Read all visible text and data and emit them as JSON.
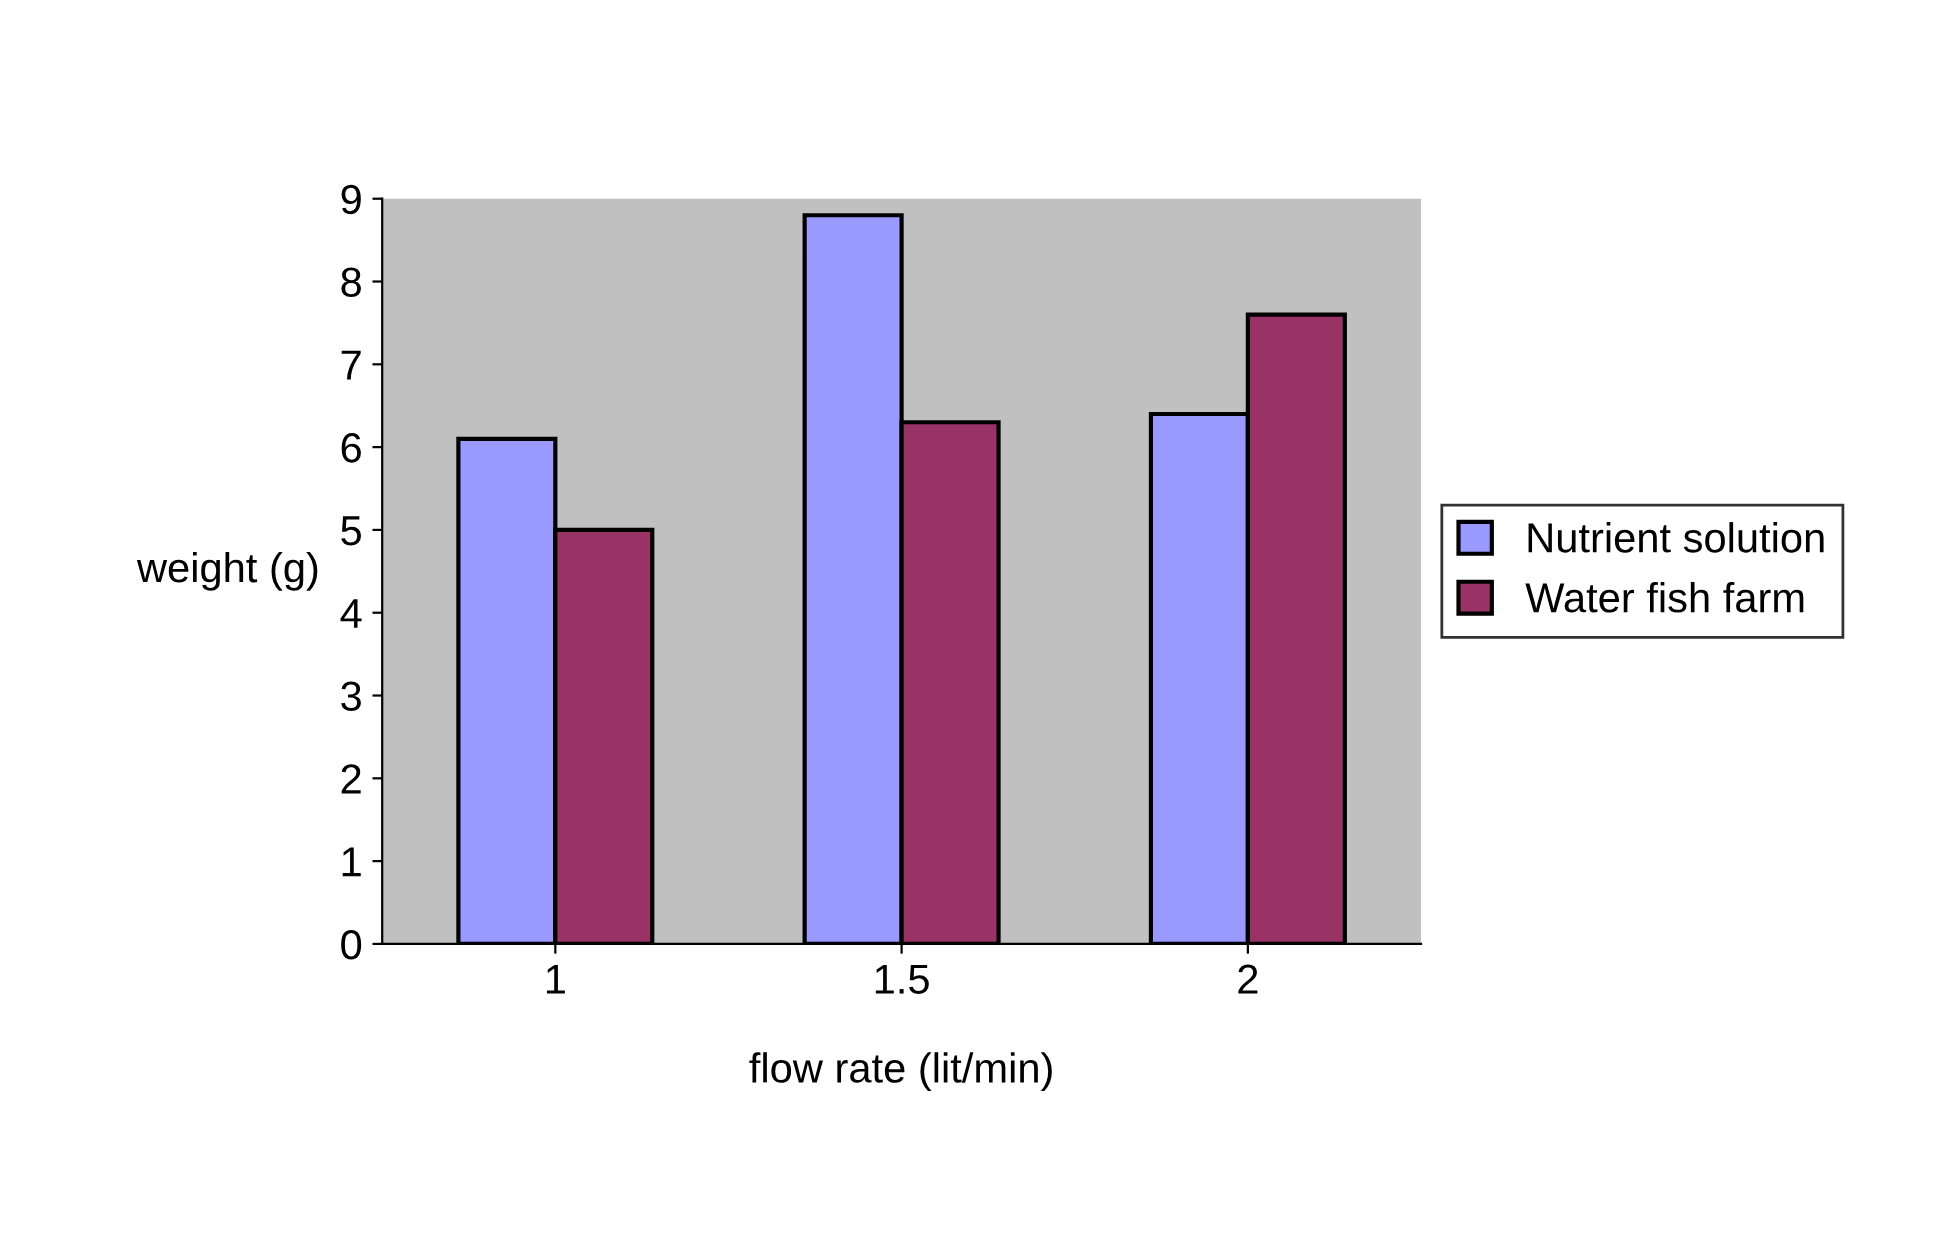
{
  "chart_data": {
    "type": "bar",
    "xlabel": "flow rate (lit/min)",
    "ylabel": "weight (g)",
    "categories": [
      "1",
      "1.5",
      "2"
    ],
    "series": [
      {
        "name": "Nutrient solution",
        "color": "#9999ff",
        "values": [
          6.1,
          8.8,
          6.4
        ]
      },
      {
        "name": "Water fish farm",
        "color": "#993366",
        "values": [
          5.0,
          6.3,
          7.6
        ]
      }
    ],
    "ylim": [
      0,
      9
    ],
    "yticks": [
      0,
      1,
      2,
      3,
      4,
      5,
      6,
      7,
      8,
      9
    ],
    "grid": false,
    "legend": "right"
  }
}
